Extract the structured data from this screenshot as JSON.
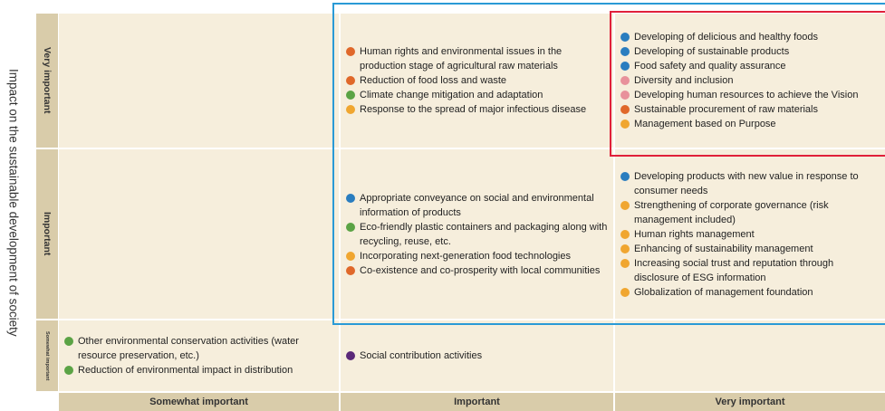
{
  "axis_label": "Impact on the sustainable development of society",
  "columns": [
    "Somewhat important",
    "Important",
    "Very important"
  ],
  "rows": [
    {
      "label": "Very important",
      "cells": [
        [],
        [
          {
            "text": "Human rights and environmental issues in the production stage of agricultural raw materials",
            "color": "#e0682a"
          },
          {
            "text": "Reduction of food loss and waste",
            "color": "#e0682a"
          },
          {
            "text": "Climate change mitigation and adaptation",
            "color": "#5ba345"
          },
          {
            "text": "Response to the spread of major infectious disease",
            "color": "#f0a630"
          }
        ],
        [
          {
            "text": "Developing of delicious and healthy foods",
            "color": "#2a7dbf"
          },
          {
            "text": "Developing of sustainable products",
            "color": "#2a7dbf"
          },
          {
            "text": "Food safety and quality assurance",
            "color": "#2a7dbf"
          },
          {
            "text": "Diversity and inclusion",
            "color": "#e8919b"
          },
          {
            "text": "Developing human resources to achieve the Vision",
            "color": "#e8919b"
          },
          {
            "text": "Sustainable procurement of raw materials",
            "color": "#e0682a"
          },
          {
            "text": "Management based on Purpose",
            "color": "#f0a630"
          }
        ]
      ]
    },
    {
      "label": "Important",
      "cells": [
        [],
        [
          {
            "text": "Appropriate conveyance on social and environmental information of products",
            "color": "#2a7dbf"
          },
          {
            "text": "Eco-friendly plastic containers and packaging along with recycling, reuse, etc.",
            "color": "#5ba345"
          },
          {
            "text": "Incorporating next-generation food technologies",
            "color": "#f0a630"
          },
          {
            "text": "Co-existence and co-prosperity with local communities",
            "color": "#e0682a"
          }
        ],
        [
          {
            "text": "Developing products with new value in response to consumer needs",
            "color": "#2a7dbf"
          },
          {
            "text": "Strengthening of corporate governance (risk management included)",
            "color": "#f0a630"
          },
          {
            "text": "Human rights management",
            "color": "#f0a630"
          },
          {
            "text": "Enhancing of sustainability management",
            "color": "#f0a630"
          },
          {
            "text": "Increasing social trust and reputation through disclosure of ESG information",
            "color": "#f0a630"
          },
          {
            "text": "Globalization of management foundation",
            "color": "#f0a630"
          }
        ]
      ]
    },
    {
      "label": "Somewhat important",
      "cells": [
        [
          {
            "text": "Other environmental conservation activities (water resource preservation, etc.)",
            "color": "#5ba345"
          },
          {
            "text": "Reduction of environmental impact in distribution",
            "color": "#5ba345"
          }
        ],
        [
          {
            "text": "Social contribution activities",
            "color": "#5a2878"
          }
        ],
        []
      ]
    }
  ]
}
